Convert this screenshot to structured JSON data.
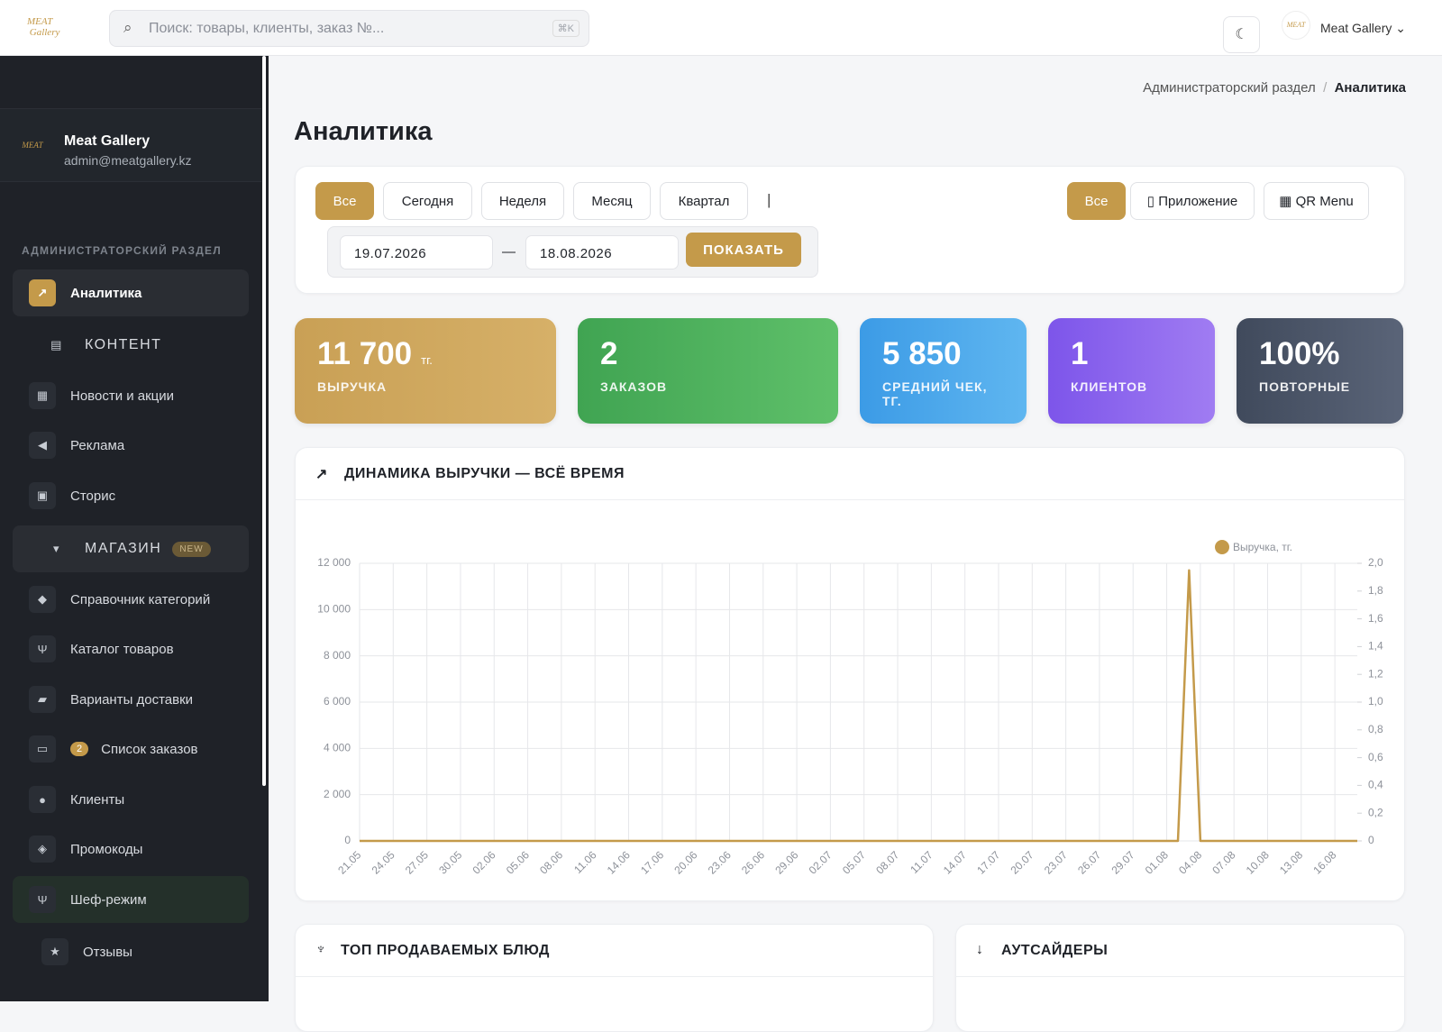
{
  "header": {
    "search_placeholder": "Поиск: товары, клиенты, заказ №...",
    "shortcut": "⌘K",
    "user": "Meat Gallery"
  },
  "sidebar": {
    "profile": {
      "name": "Meat Gallery",
      "email": "admin@meatgallery.kz"
    },
    "section": "АДМИНИСТРАТОРСКИЙ РАЗДЕЛ",
    "items": [
      {
        "label": "Аналитика"
      },
      {
        "label": "КОНТЕНТ"
      },
      {
        "label": "Новости и акции"
      },
      {
        "label": "Реклама"
      },
      {
        "label": "Сторис"
      },
      {
        "label": "МАГАЗИН",
        "badge": "NEW"
      },
      {
        "label": "Справочник категорий"
      },
      {
        "label": "Каталог товаров"
      },
      {
        "label": "Варианты доставки"
      },
      {
        "label": "Список заказов",
        "badge": "2"
      },
      {
        "label": "Клиенты"
      },
      {
        "label": "Промокоды"
      },
      {
        "label": "Шеф-режим"
      },
      {
        "label": "Отзывы"
      }
    ]
  },
  "breadcrumb": [
    "Администраторский раздел",
    "/",
    "Аналитика"
  ],
  "title": "Аналитика",
  "filters": {
    "periods": [
      "Все",
      "Сегодня",
      "Неделя",
      "Месяц",
      "Квартал"
    ],
    "separator": "|",
    "sources": [
      "Все",
      "▯ Приложение",
      "▦ QR Menu"
    ],
    "date_from": "19.07.2026",
    "dash": "—",
    "date_to": "18.08.2026",
    "submit": "ПОКАЗАТЬ"
  },
  "stats": [
    {
      "value": "11 700",
      "unit": "тг.",
      "label": "ВЫРУЧКА"
    },
    {
      "value": "2",
      "label": "ЗАКАЗОВ"
    },
    {
      "value": "5 850",
      "label": "СРЕДНИЙ ЧЕК, ТГ."
    },
    {
      "value": "1",
      "label": "КЛИЕНТОВ"
    },
    {
      "value": "100%",
      "label": "ПОВТОРНЫЕ"
    }
  ],
  "chart_data": {
    "type": "line",
    "title": "ДИНАМИКА ВЫРУЧКИ — ВСЁ ВРЕМЯ",
    "categories": [
      "21.05",
      null,
      null,
      "24.05",
      null,
      null,
      "27.05",
      null,
      null,
      "30.05",
      null,
      null,
      "02.06",
      null,
      null,
      "05.06",
      null,
      null,
      "08.06",
      null,
      null,
      "11.06",
      null,
      null,
      "14.06",
      null,
      null,
      "17.06",
      null,
      null,
      "20.06",
      null,
      null,
      "23.06",
      null,
      null,
      "26.06",
      null,
      null,
      "29.06",
      null,
      null,
      "02.07",
      null,
      null,
      "05.07",
      null,
      null,
      "08.07",
      null,
      null,
      "11.07",
      null,
      null,
      "14.07",
      null,
      null,
      "17.07",
      null,
      null,
      "20.07",
      null,
      null,
      "23.07",
      null,
      null,
      "26.07",
      null,
      null,
      "29.07",
      null,
      null,
      "01.08",
      null,
      null,
      "04.08",
      null,
      null,
      "07.08",
      null,
      null,
      "10.08",
      null,
      null,
      "13.08",
      null,
      null,
      "16.08",
      null,
      null
    ],
    "series": [
      {
        "name": "Выручка, тг.",
        "color": "#c49a4a",
        "values": [
          0,
          0,
          0,
          0,
          0,
          0,
          0,
          0,
          0,
          0,
          0,
          0,
          0,
          0,
          0,
          0,
          0,
          0,
          0,
          0,
          0,
          0,
          0,
          0,
          0,
          0,
          0,
          0,
          0,
          0,
          0,
          0,
          0,
          0,
          0,
          0,
          0,
          0,
          0,
          0,
          0,
          0,
          0,
          0,
          0,
          0,
          0,
          0,
          0,
          0,
          0,
          0,
          0,
          0,
          0,
          0,
          0,
          0,
          0,
          0,
          0,
          0,
          0,
          0,
          0,
          0,
          0,
          0,
          0,
          0,
          0,
          0,
          0,
          0,
          11700,
          0,
          0,
          0,
          0,
          0,
          0,
          0,
          0,
          0,
          0,
          0,
          0,
          0,
          0,
          0
        ]
      }
    ],
    "ylim": [
      0,
      12000
    ],
    "yticks": [
      0,
      {
        "value": 2000,
        "label": "2 000"
      },
      {
        "value": 4000,
        "label": "4 000"
      },
      {
        "value": 6000,
        "label": "6 000"
      },
      {
        "value": 8000,
        "label": "8 000"
      },
      {
        "value": 10000,
        "label": "10 000"
      },
      {
        "value": 12000,
        "label": "12 000"
      }
    ],
    "y2lim": [
      0,
      2
    ],
    "y2ticks": [
      0,
      {
        "value": 0.2,
        "label": "0,2"
      },
      {
        "value": 0.4,
        "label": "0,4"
      },
      {
        "value": 0.6,
        "label": "0,6"
      },
      {
        "value": 0.8,
        "label": "0,8"
      },
      {
        "value": 1,
        "label": "1,0"
      },
      {
        "value": 1.2,
        "label": "1,2"
      },
      {
        "value": 1.4,
        "label": "1,4"
      },
      {
        "value": 1.6,
        "label": "1,6"
      },
      {
        "value": 1.8,
        "label": "1,8"
      },
      {
        "value": 2,
        "label": "2,0"
      }
    ],
    "grid": true,
    "legend": "top-right"
  },
  "bottom_cards": [
    "ТОП ПРОДАВАЕМЫХ БЛЮД",
    "АУТСАЙДЕРЫ"
  ]
}
